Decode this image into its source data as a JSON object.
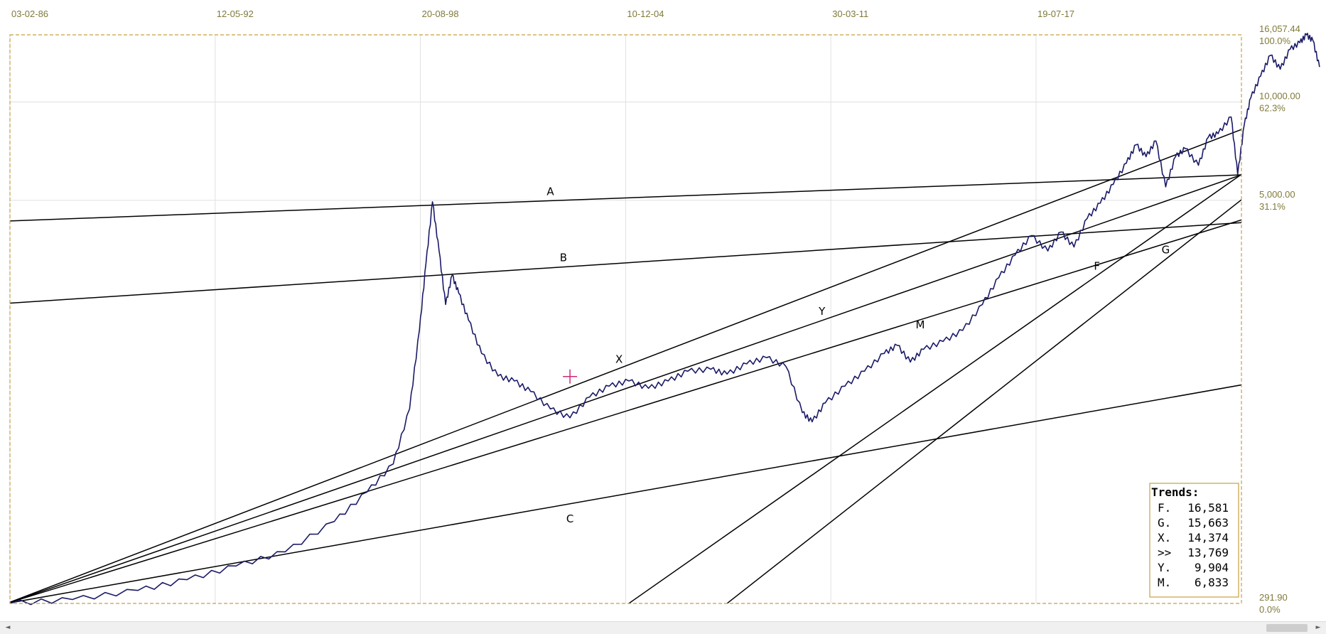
{
  "chart_data": {
    "type": "line",
    "y_scale": "log",
    "ylim": [
      291.9,
      16057.44
    ],
    "x_tick_labels": [
      "03-02-86",
      "12-05-92",
      "20-08-98",
      "10-12-04",
      "30-03-11",
      "19-07-17"
    ],
    "y_ticks": [
      {
        "value": "16,057.44",
        "pct": "100.0%"
      },
      {
        "value": "10,000.00",
        "pct": "62.3%"
      },
      {
        "value": "5,000.00",
        "pct": "31.1%"
      },
      {
        "value": "291.90",
        "pct": "0.0%"
      }
    ],
    "grid": true,
    "series_color": "#1a1a66",
    "line_color": "#000000",
    "frame_color": "#c8a040",
    "price_series": [
      [
        1986.1,
        292
      ],
      [
        1988.0,
        300
      ],
      [
        1990.0,
        320
      ],
      [
        1991.5,
        345
      ],
      [
        1993.0,
        380
      ],
      [
        1994.5,
        420
      ],
      [
        1996.0,
        520
      ],
      [
        1997.0,
        640
      ],
      [
        1997.8,
        780
      ],
      [
        1998.3,
        1150
      ],
      [
        1998.6,
        2000
      ],
      [
        1998.8,
        3200
      ],
      [
        1999.0,
        4950
      ],
      [
        1999.2,
        3500
      ],
      [
        1999.4,
        2400
      ],
      [
        1999.6,
        2950
      ],
      [
        1999.8,
        2600
      ],
      [
        2000.1,
        2150
      ],
      [
        2000.5,
        1700
      ],
      [
        2001.0,
        1450
      ],
      [
        2001.5,
        1400
      ],
      [
        2002.0,
        1300
      ],
      [
        2002.6,
        1150
      ],
      [
        2003.2,
        1080
      ],
      [
        2003.8,
        1250
      ],
      [
        2004.4,
        1350
      ],
      [
        2005.0,
        1400
      ],
      [
        2005.6,
        1330
      ],
      [
        2006.2,
        1400
      ],
      [
        2006.8,
        1500
      ],
      [
        2007.5,
        1520
      ],
      [
        2008.0,
        1470
      ],
      [
        2008.6,
        1580
      ],
      [
        2009.2,
        1650
      ],
      [
        2009.8,
        1550
      ],
      [
        2010.3,
        1120
      ],
      [
        2010.6,
        1050
      ],
      [
        2011.0,
        1200
      ],
      [
        2011.6,
        1350
      ],
      [
        2012.2,
        1500
      ],
      [
        2012.8,
        1700
      ],
      [
        2013.2,
        1800
      ],
      [
        2013.6,
        1600
      ],
      [
        2014.0,
        1750
      ],
      [
        2014.6,
        1850
      ],
      [
        2015.2,
        2000
      ],
      [
        2015.8,
        2400
      ],
      [
        2016.3,
        2900
      ],
      [
        2016.8,
        3400
      ],
      [
        2017.3,
        3900
      ],
      [
        2017.8,
        3500
      ],
      [
        2018.2,
        4000
      ],
      [
        2018.6,
        3600
      ],
      [
        2019.0,
        4400
      ],
      [
        2019.4,
        4900
      ],
      [
        2019.8,
        5600
      ],
      [
        2020.2,
        6500
      ],
      [
        2020.5,
        7400
      ],
      [
        2020.8,
        6800
      ],
      [
        2021.1,
        7600
      ],
      [
        2021.4,
        5500
      ],
      [
        2021.7,
        6800
      ],
      [
        2022.0,
        7200
      ],
      [
        2022.4,
        6400
      ],
      [
        2022.7,
        7800
      ],
      [
        2023.0,
        8000
      ],
      [
        2023.4,
        9000
      ],
      [
        2023.6,
        6000
      ],
      [
        2023.8,
        8500
      ],
      [
        2024.0,
        10300
      ],
      [
        2024.3,
        12000
      ],
      [
        2024.6,
        13900
      ],
      [
        2024.9,
        12600
      ],
      [
        2025.2,
        14500
      ],
      [
        2025.5,
        15200
      ],
      [
        2025.7,
        16057
      ],
      [
        2025.9,
        15400
      ],
      [
        2026.1,
        12800
      ]
    ],
    "trendlines": [
      {
        "label": "A",
        "points": [
          [
            1986.0,
            4320
          ],
          [
            2030.0,
            6320
          ]
        ]
      },
      {
        "label": "B",
        "points": [
          [
            1986.0,
            2420
          ],
          [
            2030.0,
            4700
          ]
        ]
      },
      {
        "label": "C",
        "points": [
          [
            1986.0,
            292
          ],
          [
            2030.0,
            1760
          ]
        ]
      },
      {
        "label": "X",
        "points": [
          [
            1986.0,
            292
          ],
          [
            2030.0,
            14374
          ]
        ]
      },
      {
        "label": "Y",
        "points": [
          [
            1986.0,
            292
          ],
          [
            2030.0,
            9904
          ]
        ]
      },
      {
        "label": "M",
        "points": [
          [
            1986.0,
            292
          ],
          [
            2030.0,
            6833
          ]
        ]
      },
      {
        "label": "F",
        "points": [
          [
            2005.0,
            292
          ],
          [
            2030.0,
            16581
          ]
        ]
      },
      {
        "label": "G",
        "points": [
          [
            2008.0,
            292
          ],
          [
            2030.0,
            15663
          ]
        ]
      }
    ],
    "marker": {
      "x": 2003.2,
      "y": 1445
    },
    "trend_box": {
      "title": "Trends:",
      "rows": [
        {
          "label": "F.",
          "value": "16,581"
        },
        {
          "label": "G.",
          "value": "15,663"
        },
        {
          "label": "X.",
          "value": "14,374"
        },
        {
          "label": ">>",
          "value": "13,769"
        },
        {
          "label": "Y.",
          "value": "9,904"
        },
        {
          "label": "M.",
          "value": "6,833"
        }
      ]
    }
  },
  "scrollbar": {
    "left_arrow": "◄",
    "right_arrow": "►"
  }
}
